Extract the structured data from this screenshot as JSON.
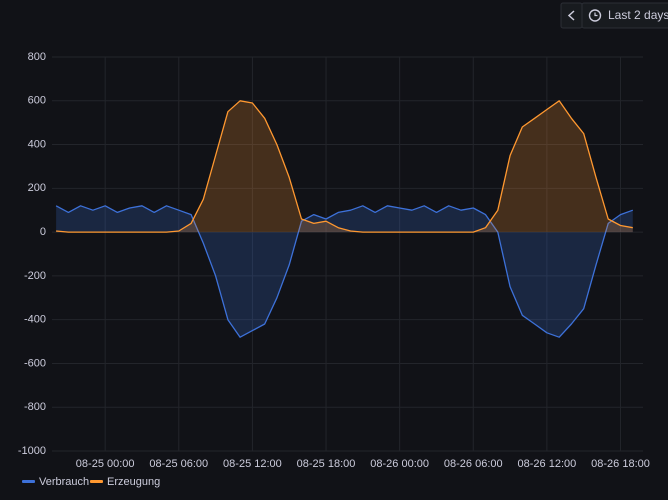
{
  "time_range": "Last 2 days",
  "chart_data": {
    "type": "line",
    "x": [
      "08-24 20:00",
      "08-24 21:00",
      "08-24 22:00",
      "08-24 23:00",
      "08-25 00:00",
      "08-25 01:00",
      "08-25 02:00",
      "08-25 03:00",
      "08-25 04:00",
      "08-25 05:00",
      "08-25 06:00",
      "08-25 07:00",
      "08-25 08:00",
      "08-25 09:00",
      "08-25 10:00",
      "08-25 11:00",
      "08-25 12:00",
      "08-25 13:00",
      "08-25 14:00",
      "08-25 15:00",
      "08-25 16:00",
      "08-25 17:00",
      "08-25 18:00",
      "08-25 19:00",
      "08-25 20:00",
      "08-25 21:00",
      "08-25 22:00",
      "08-25 23:00",
      "08-26 00:00",
      "08-26 01:00",
      "08-26 02:00",
      "08-26 03:00",
      "08-26 04:00",
      "08-26 05:00",
      "08-26 06:00",
      "08-26 07:00",
      "08-26 08:00",
      "08-26 09:00",
      "08-26 10:00",
      "08-26 11:00",
      "08-26 12:00",
      "08-26 13:00",
      "08-26 14:00",
      "08-26 15:00",
      "08-26 16:00",
      "08-26 17:00",
      "08-26 18:00",
      "08-26 19:00"
    ],
    "series": [
      {
        "name": "Verbrauch",
        "color": "#3d71d9",
        "values": [
          120,
          90,
          120,
          100,
          120,
          90,
          110,
          120,
          90,
          120,
          100,
          80,
          -50,
          -200,
          -400,
          -480,
          -450,
          -420,
          -300,
          -150,
          50,
          80,
          60,
          90,
          100,
          120,
          90,
          120,
          110,
          100,
          120,
          90,
          120,
          100,
          110,
          80,
          0,
          -250,
          -380,
          -420,
          -460,
          -480,
          -420,
          -350,
          -150,
          40,
          80,
          100
        ]
      },
      {
        "name": "Erzeugung",
        "color": "#ff9830",
        "values": [
          5,
          0,
          0,
          0,
          0,
          0,
          0,
          0,
          0,
          0,
          5,
          40,
          150,
          350,
          550,
          600,
          590,
          520,
          400,
          250,
          60,
          40,
          50,
          20,
          5,
          0,
          0,
          0,
          0,
          0,
          0,
          0,
          0,
          0,
          0,
          20,
          100,
          350,
          480,
          520,
          560,
          600,
          520,
          450,
          250,
          60,
          30,
          20
        ]
      }
    ],
    "xlim": [
      "08-24 19:40",
      "08-26 19:50"
    ],
    "xticks": [
      "08-25 00:00",
      "08-25 06:00",
      "08-25 12:00",
      "08-25 18:00",
      "08-26 00:00",
      "08-26 06:00",
      "08-26 12:00",
      "08-26 18:00"
    ],
    "ylim": [
      -1000,
      800
    ],
    "yticks": [
      -1000,
      -800,
      -600,
      -400,
      -200,
      0,
      200,
      400,
      600,
      800
    ],
    "grid": true
  }
}
